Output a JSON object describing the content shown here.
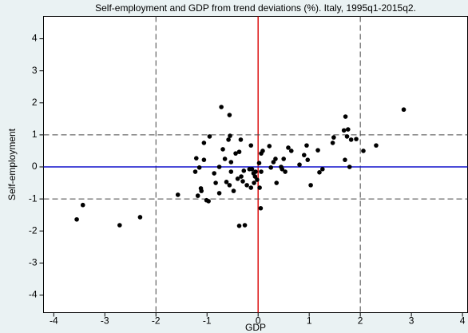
{
  "chart_data": {
    "type": "scatter",
    "title": "Self-employment and GDP from trend deviations (%). Italy, 1995q1-2015q2.",
    "x_label": "GDP",
    "y_label": "Self-employment",
    "xlim": [
      -4.2,
      4.1
    ],
    "ylim": [
      -4.55,
      4.7
    ],
    "xticks": [
      -4,
      -3,
      -2,
      -1,
      0,
      1,
      2,
      3,
      4
    ],
    "yticks": [
      -4,
      -3,
      -2,
      -1,
      0,
      1,
      2,
      3,
      4
    ],
    "grid": false,
    "vlines": [
      {
        "value": -2,
        "color": "#444444",
        "dashed": true
      },
      {
        "value": 2,
        "color": "#444444",
        "dashed": true
      },
      {
        "value": 0,
        "color": "#dd1111",
        "dashed": false
      }
    ],
    "hlines": [
      {
        "value": 1,
        "color": "#444444",
        "dashed": true
      },
      {
        "value": -1,
        "color": "#444444",
        "dashed": true
      },
      {
        "value": 0,
        "color": "#1111cc",
        "dashed": false
      }
    ],
    "series": [
      {
        "color": "#000000",
        "x": [
          -3.55,
          -3.43,
          -2.71,
          -2.31,
          -1.57,
          -1.23,
          -1.21,
          -1.18,
          -1.15,
          -1.12,
          -1.11,
          -1.06,
          -1.06,
          -1.01,
          -0.97,
          -0.95,
          -0.86,
          -0.83,
          -0.76,
          -0.76,
          -0.72,
          -0.69,
          -0.65,
          -0.62,
          -0.58,
          -0.56,
          -0.55,
          -0.53,
          -0.53,
          -0.56,
          -0.48,
          -0.44,
          -0.4,
          -0.37,
          -0.37,
          -0.34,
          -0.33,
          -0.3,
          -0.28,
          -0.26,
          -0.22,
          -0.17,
          -0.14,
          -0.14,
          -0.12,
          -0.09,
          -0.08,
          -0.06,
          -0.05,
          -0.02,
          0.02,
          0.03,
          0.05,
          0.06,
          0.06,
          0.09,
          0.22,
          0.25,
          0.3,
          0.34,
          0.36,
          0.45,
          0.47,
          0.5,
          0.53,
          0.59,
          0.65,
          0.81,
          0.9,
          0.95,
          0.97,
          1.03,
          1.17,
          1.2,
          1.26,
          1.46,
          1.48,
          1.68,
          1.7,
          1.71,
          1.74,
          1.76,
          1.79,
          1.82,
          1.92,
          2.06,
          2.31,
          2.85
        ],
        "values": [
          -1.64,
          -1.19,
          -1.82,
          -1.57,
          -0.87,
          -0.15,
          0.27,
          -0.9,
          -0.02,
          -0.67,
          -0.75,
          0.75,
          0.22,
          -1.04,
          -1.07,
          0.95,
          -0.2,
          -0.5,
          0.0,
          -0.82,
          1.87,
          0.55,
          0.25,
          -0.47,
          0.85,
          1.62,
          0.97,
          0.15,
          -0.15,
          -0.57,
          -0.75,
          0.42,
          -0.37,
          0.47,
          -1.84,
          0.85,
          -0.3,
          -0.45,
          -0.12,
          -1.82,
          -0.57,
          -0.07,
          0.67,
          -0.65,
          -0.07,
          -0.2,
          -0.5,
          -0.3,
          -0.15,
          -0.4,
          0.12,
          -0.65,
          -1.29,
          -0.15,
          0.42,
          0.5,
          0.65,
          -0.02,
          0.15,
          0.25,
          -0.5,
          0.0,
          -0.07,
          0.25,
          -0.15,
          0.6,
          0.5,
          0.07,
          0.37,
          0.67,
          0.22,
          -0.57,
          0.52,
          -0.17,
          -0.07,
          0.75,
          0.92,
          1.14,
          0.22,
          1.57,
          0.95,
          1.17,
          0.0,
          0.85,
          0.87,
          0.5,
          0.67,
          1.79
        ]
      }
    ]
  }
}
